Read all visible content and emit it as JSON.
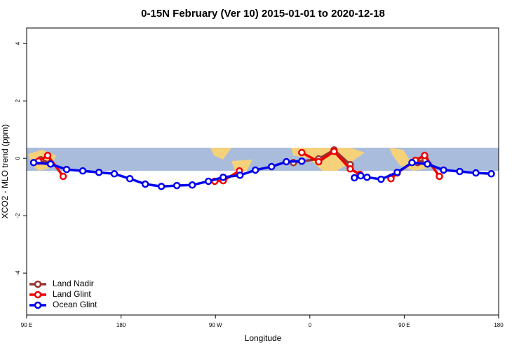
{
  "chart_data": {
    "type": "line",
    "title": "0-15N February (Ver 10)   2015-01-01 to 2020-12-18",
    "x_label": "Longitude",
    "y_label": "XCO2 - MLO trend (ppm)",
    "xlim": [
      90,
      540
    ],
    "ylim": [
      -5.46,
      4.54
    ],
    "xticks": [
      {
        "value": 90,
        "label": "90 E"
      },
      {
        "value": 180,
        "label": "180"
      },
      {
        "value": 270,
        "label": "90 W"
      },
      {
        "value": 360,
        "label": "0"
      },
      {
        "value": 450,
        "label": "90 E"
      },
      {
        "value": 540,
        "label": "180"
      }
    ],
    "yticks": [
      -4,
      -2,
      0,
      2,
      4
    ],
    "legend": "bottomleft",
    "series": [
      {
        "name": "Land Nadir",
        "color": "#993333",
        "x": [
          103.4,
          112.8,
          null,
          344.3,
          368.4,
          383.1,
          398.5,
          null,
          437.3,
          null,
          462.7,
          470.1
        ],
        "values": [
          -0.05,
          -0.17,
          null,
          -0.15,
          -0.02,
          0.29,
          -0.22,
          null,
          -0.66,
          null,
          -0.15,
          -0.05
        ]
      },
      {
        "name": "Land Glint",
        "color": "#ee0000",
        "x": [
          101.4,
          110.1,
          124.8,
          null,
          269.3,
          277.4,
          292.8,
          null,
          352.3,
          368.4,
          383.1,
          398.5,
          407.8,
          null,
          437.3,
          443.3,
          460.7,
          469.4,
          483.5
        ],
        "values": [
          -0.1,
          0.1,
          -0.63,
          null,
          -0.8,
          -0.78,
          -0.44,
          null,
          0.2,
          -0.12,
          0.24,
          -0.37,
          -0.56,
          null,
          -0.71,
          -0.51,
          -0.07,
          0.1,
          -0.63
        ]
      },
      {
        "name": "Ocean Glint",
        "color": "#0000ee",
        "x": [
          96.7,
          112.8,
          128.1,
          143.5,
          158.9,
          173.6,
          188.4,
          203.1,
          218.5,
          233.2,
          247.9,
          263.3,
          277.4,
          293.4,
          308.1,
          323.5,
          337.6,
          352.3,
          null,
          402.5,
          408.5,
          414.5,
          427.9,
          443.3,
          457.4,
          472.1,
          487.5,
          502.9,
          518.3,
          533.0
        ],
        "values": [
          -0.15,
          -0.2,
          -0.39,
          -0.44,
          -0.49,
          -0.54,
          -0.71,
          -0.9,
          -0.98,
          -0.95,
          -0.93,
          -0.8,
          -0.66,
          -0.59,
          -0.41,
          -0.29,
          -0.12,
          -0.1,
          null,
          -0.68,
          -0.61,
          -0.66,
          -0.73,
          -0.49,
          -0.15,
          -0.2,
          -0.41,
          -0.46,
          -0.51,
          -0.54
        ]
      }
    ]
  }
}
